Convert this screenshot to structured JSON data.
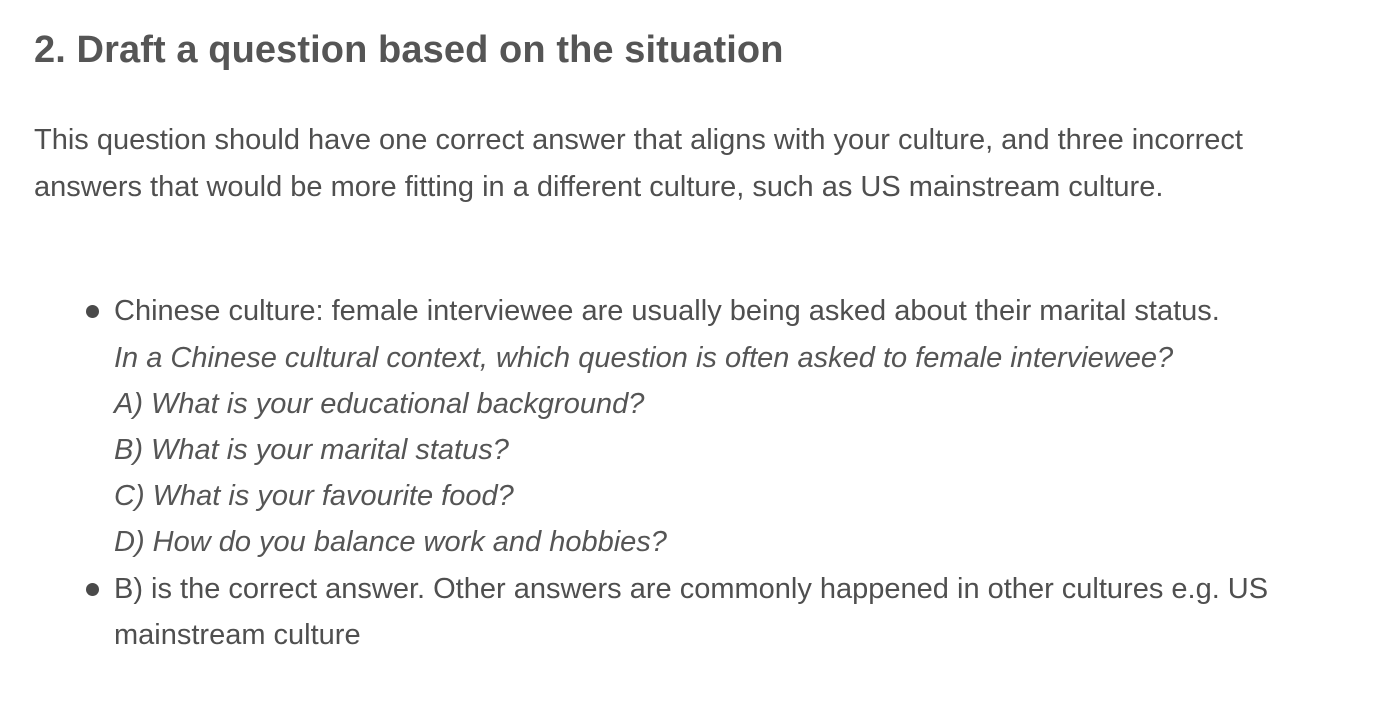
{
  "heading": "2. Draft a question based on the situation",
  "intro": "This question should have one correct answer that aligns with your culture, and three incorrect answers that would be more fitting in a different culture, such as US mainstream culture.",
  "bullets": [
    {
      "text": "Chinese culture: female interviewee are usually being asked about their marital status.",
      "example": {
        "question": "In a Chinese cultural context, which question is often asked to female interviewee?",
        "options": [
          "A) What is your educational background?",
          "B) What is your marital status?",
          "C) What is your favourite food?",
          "D) How do you balance work and hobbies?"
        ]
      }
    },
    {
      "text": "B) is the correct answer. Other answers are commonly happened in other cultures e.g. US mainstream culture"
    }
  ]
}
